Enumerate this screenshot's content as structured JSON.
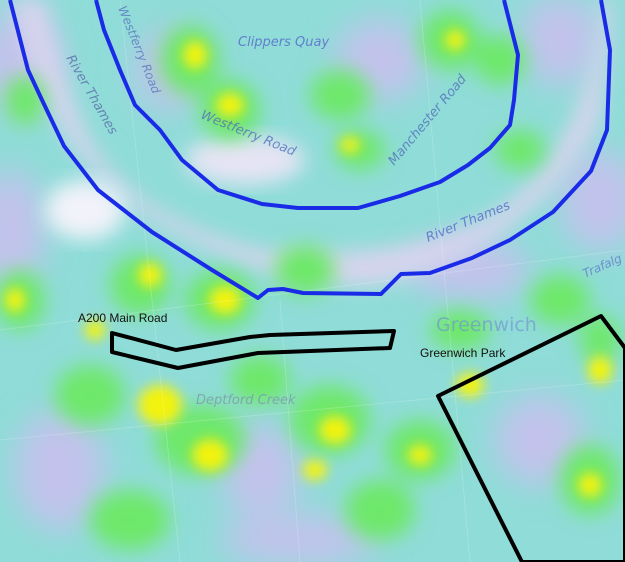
{
  "map": {
    "colors": {
      "river_outline": "#1a2be8",
      "overlay_outline": "#000000",
      "heat_low": "#c9c9ec",
      "heat_mid": "#55e8f0",
      "heat_high": "#f2f20a"
    },
    "base_labels": {
      "clippers_quay": "Clippers Quay",
      "westferry_road": "Westferry Road",
      "westferry_road_2": "Westferry Road",
      "manchester_road": "Manchester Road",
      "river_thames_west": "River Thames",
      "river_thames_east": "River Thames",
      "greenwich": "Greenwich",
      "deptford_creek": "Deptford Creek",
      "trafalgar": "Trafalg"
    },
    "overlay_labels": {
      "a200_main_road": "A200 Main Road",
      "greenwich_park": "Greenwich Park"
    }
  }
}
